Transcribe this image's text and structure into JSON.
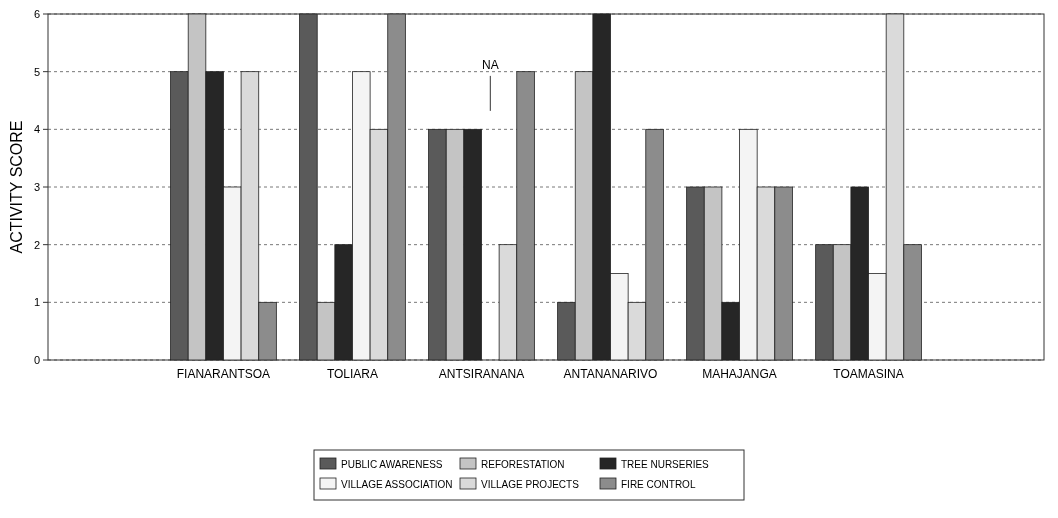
{
  "chart_data": {
    "type": "bar",
    "ylabel": "ACTIVITY SCORE",
    "categories": [
      "FIANARANTSOA",
      "TOLIARA",
      "ANTSIRANANA",
      "ANTANANARIVO",
      "MAHAJANGA",
      "TOAMASINA"
    ],
    "series": [
      {
        "name": "PUBLIC AWARENESS",
        "color": "#5a5a5a",
        "values": [
          5,
          6,
          4,
          1,
          3,
          2
        ]
      },
      {
        "name": "REFORESTATION",
        "color": "#c4c4c4",
        "values": [
          6,
          1,
          4,
          5,
          3,
          2
        ]
      },
      {
        "name": "TREE NURSERIES",
        "color": "#262626",
        "values": [
          5,
          2,
          4,
          6,
          1,
          3
        ]
      },
      {
        "name": "VILLAGE ASSOCIATION",
        "color": "#f4f4f4",
        "values": [
          3,
          5,
          null,
          1.5,
          4,
          1.5
        ]
      },
      {
        "name": "VILLAGE PROJECTS",
        "color": "#dadada",
        "values": [
          5,
          4,
          2,
          1,
          3,
          6
        ]
      },
      {
        "name": "FIRE CONTROL",
        "color": "#8c8c8c",
        "values": [
          1,
          6,
          5,
          4,
          3,
          2
        ]
      }
    ],
    "ylim": [
      0,
      6
    ],
    "yticks": [
      0,
      1,
      2,
      3,
      4,
      5,
      6
    ],
    "grid": "y",
    "legend": "bottom",
    "annotations": [
      "NA"
    ]
  }
}
